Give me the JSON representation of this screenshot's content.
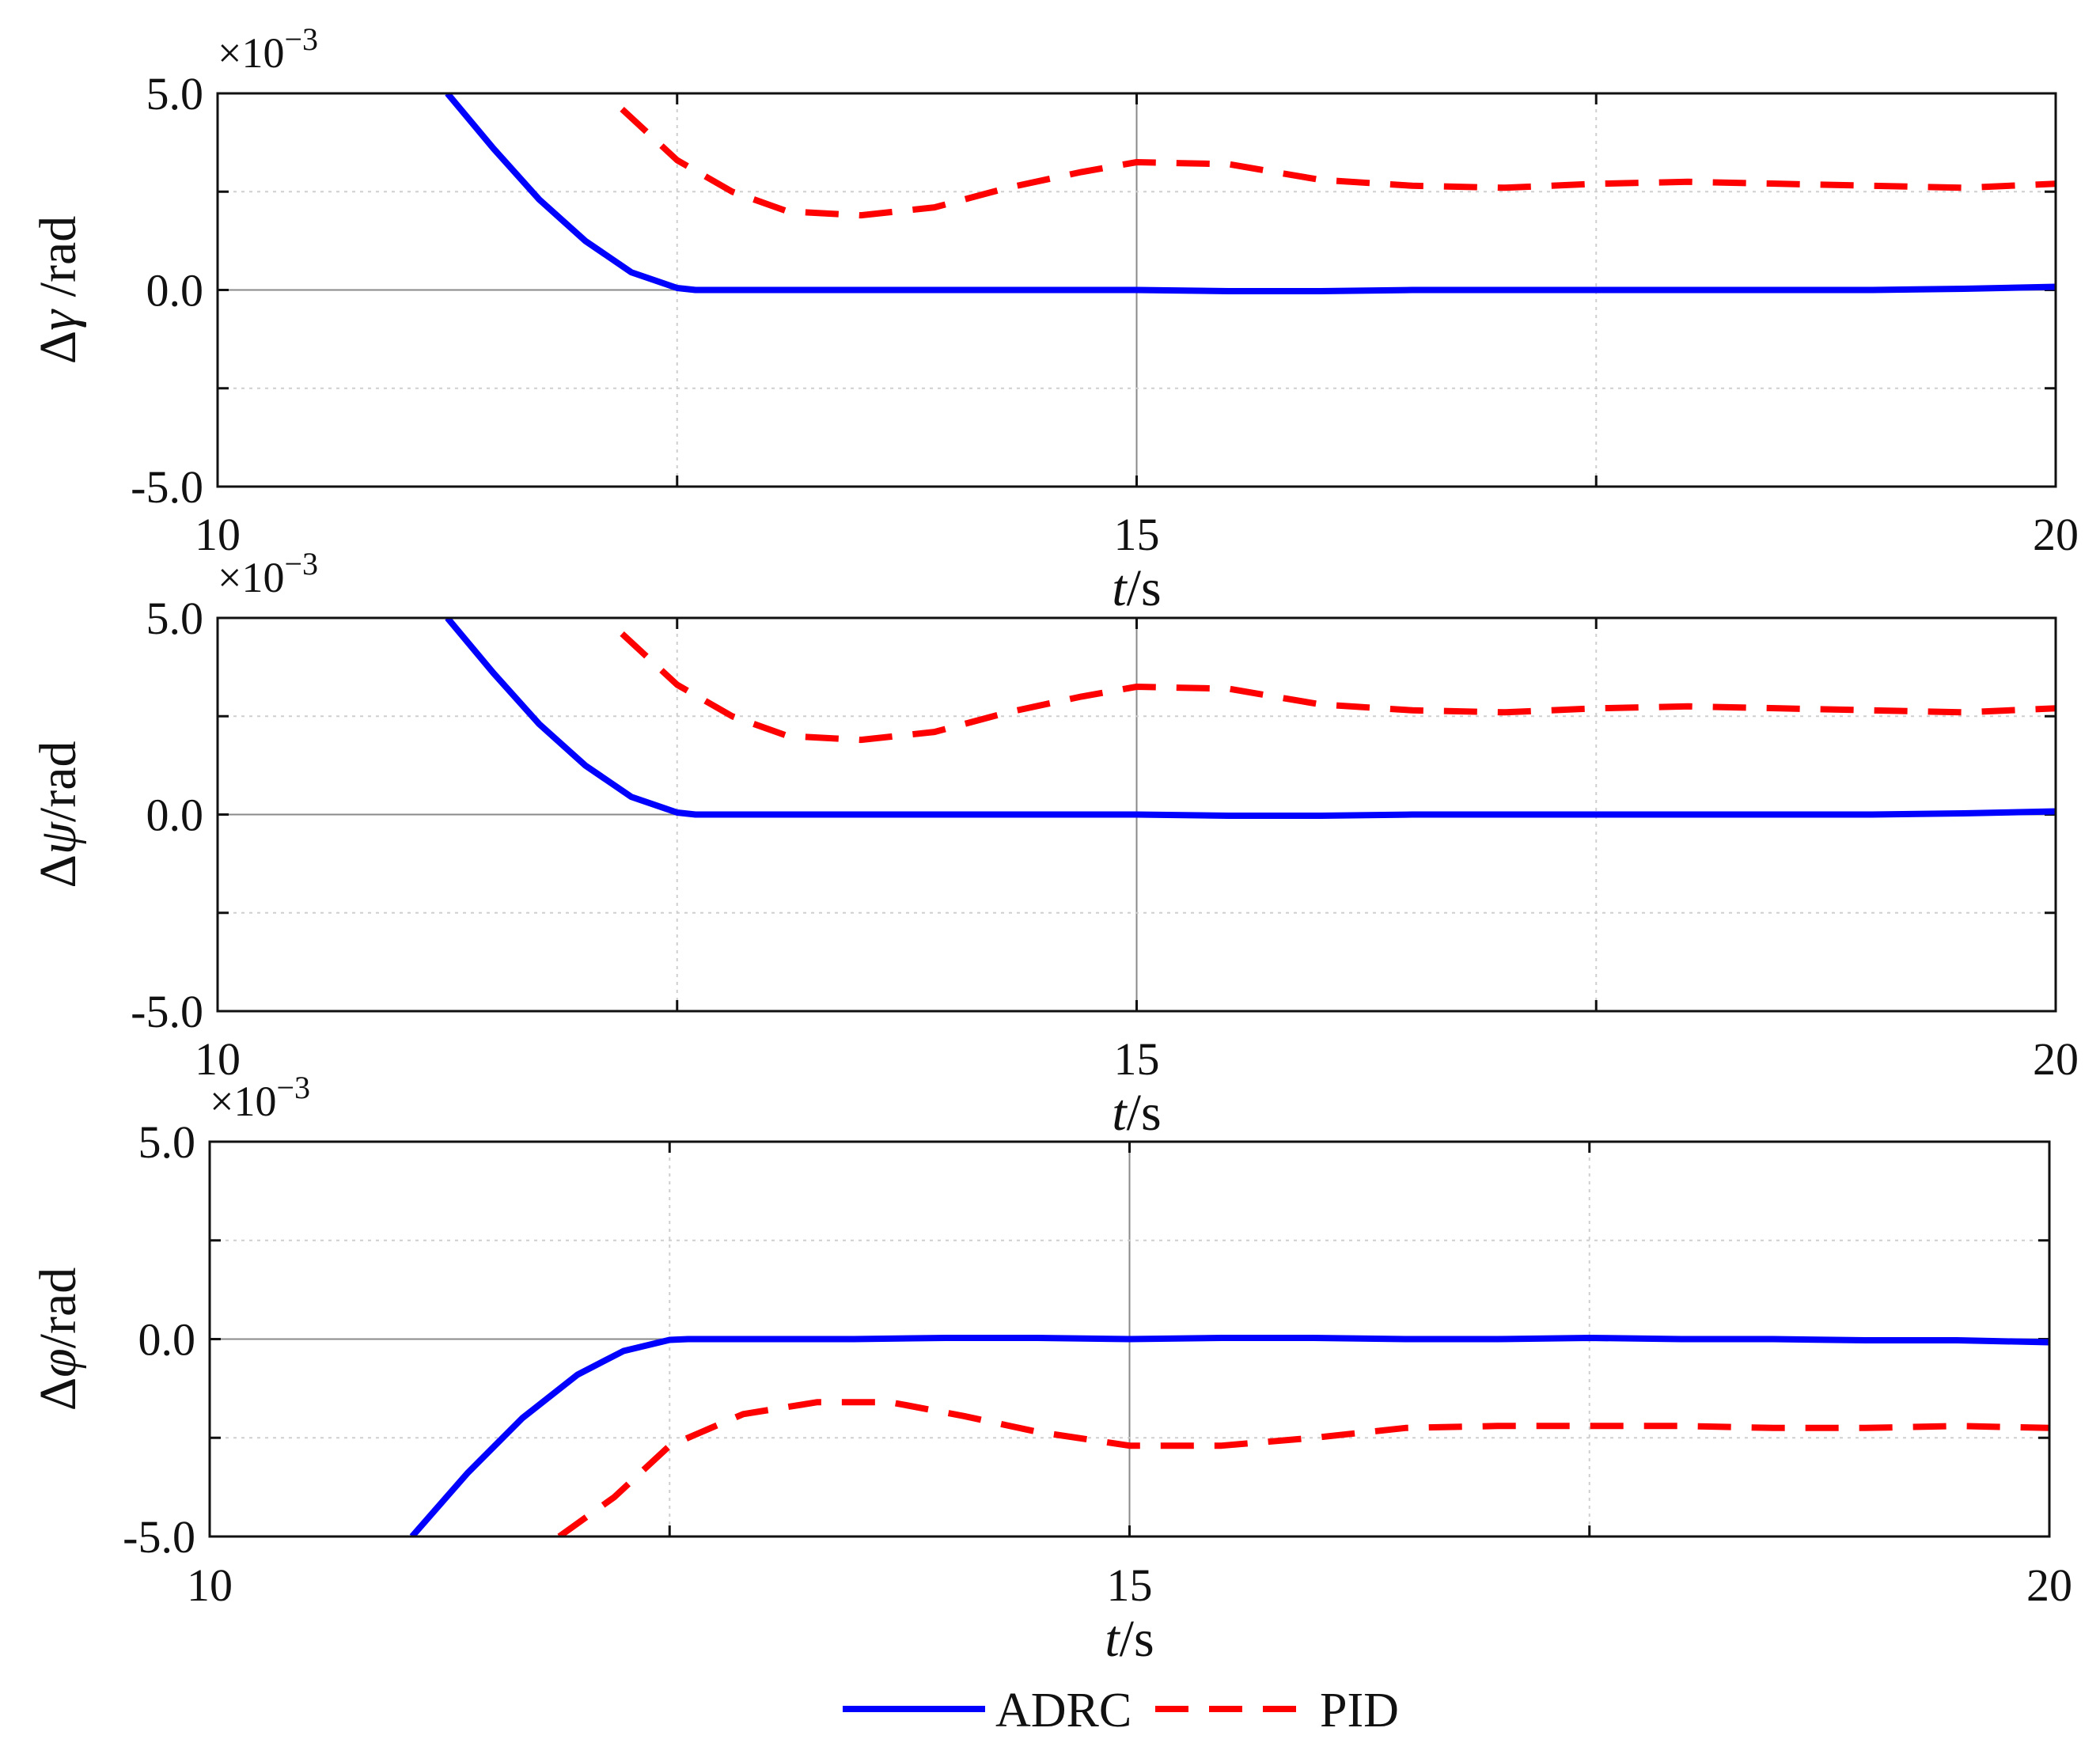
{
  "chart_data": [
    {
      "type": "line",
      "exponent_label": "×10",
      "exponent_power": "−3",
      "ylabel": {
        "prefix": "Δ",
        "symbol": "γ",
        "unit": "  /rad"
      },
      "xlabel": {
        "symbol": "t",
        "unit": "/s"
      },
      "xlim": [
        10,
        20
      ],
      "ylim": [
        -5.0,
        5.0
      ],
      "x_ticks": [
        10,
        12.5,
        15,
        17.5,
        20
      ],
      "x_tick_labels": [
        "10",
        "",
        "15",
        "",
        "20"
      ],
      "y_ticks": [
        -5.0,
        -2.5,
        0.0,
        2.5,
        5.0
      ],
      "y_tick_labels": [
        "-5.0",
        "",
        "0.0",
        "",
        "5.0"
      ],
      "series": [
        {
          "name": "ADRC",
          "style": "solid",
          "color": "#0000ff",
          "x": [
            11.25,
            11.5,
            11.75,
            12.0,
            12.25,
            12.5,
            12.6,
            13.0,
            13.5,
            14.0,
            14.5,
            15.0,
            15.5,
            16.0,
            16.5,
            17.0,
            17.5,
            18.0,
            18.5,
            19.0,
            19.5,
            20.0
          ],
          "y": [
            5.0,
            3.6,
            2.3,
            1.25,
            0.45,
            0.05,
            0.0,
            0.0,
            0.0,
            0.0,
            0.0,
            0.0,
            -0.03,
            -0.03,
            0.0,
            0.0,
            0.0,
            0.0,
            0.0,
            0.0,
            0.03,
            0.08
          ]
        },
        {
          "name": "PID",
          "style": "dashed",
          "color": "#ff0000",
          "x": [
            12.2,
            12.5,
            12.8,
            13.1,
            13.5,
            13.9,
            14.3,
            14.7,
            15.0,
            15.5,
            16.0,
            16.5,
            17.0,
            17.5,
            18.0,
            18.5,
            19.0,
            19.5,
            20.0
          ],
          "y": [
            4.6,
            3.3,
            2.5,
            2.0,
            1.9,
            2.1,
            2.6,
            3.0,
            3.25,
            3.2,
            2.8,
            2.65,
            2.6,
            2.7,
            2.75,
            2.7,
            2.65,
            2.6,
            2.7
          ]
        }
      ]
    },
    {
      "type": "line",
      "exponent_label": "×10",
      "exponent_power": "−3",
      "ylabel": {
        "prefix": "Δ",
        "symbol": "ψ",
        "unit": "/rad"
      },
      "xlabel": {
        "symbol": "t",
        "unit": "/s"
      },
      "xlim": [
        10,
        20
      ],
      "ylim": [
        -5.0,
        5.0
      ],
      "x_ticks": [
        10,
        12.5,
        15,
        17.5,
        20
      ],
      "x_tick_labels": [
        "10",
        "",
        "15",
        "",
        "20"
      ],
      "y_ticks": [
        -5.0,
        -2.5,
        0.0,
        2.5,
        5.0
      ],
      "y_tick_labels": [
        "-5.0",
        "",
        "0.0",
        "",
        "5.0"
      ],
      "series": [
        {
          "name": "ADRC",
          "style": "solid",
          "color": "#0000ff",
          "x": [
            11.25,
            11.5,
            11.75,
            12.0,
            12.25,
            12.5,
            12.6,
            13.0,
            13.5,
            14.0,
            14.5,
            15.0,
            15.5,
            16.0,
            16.5,
            17.0,
            17.5,
            18.0,
            18.5,
            19.0,
            19.5,
            20.0
          ],
          "y": [
            5.0,
            3.6,
            2.3,
            1.25,
            0.45,
            0.05,
            0.0,
            0.0,
            0.0,
            0.0,
            0.0,
            0.0,
            -0.03,
            -0.03,
            0.0,
            0.0,
            0.0,
            0.0,
            0.0,
            0.0,
            0.03,
            0.08
          ]
        },
        {
          "name": "PID",
          "style": "dashed",
          "color": "#ff0000",
          "x": [
            12.2,
            12.5,
            12.8,
            13.1,
            13.5,
            13.9,
            14.3,
            14.7,
            15.0,
            15.5,
            16.0,
            16.5,
            17.0,
            17.5,
            18.0,
            18.5,
            19.0,
            19.5,
            20.0
          ],
          "y": [
            4.6,
            3.3,
            2.5,
            2.0,
            1.9,
            2.1,
            2.6,
            3.0,
            3.25,
            3.2,
            2.8,
            2.65,
            2.6,
            2.7,
            2.75,
            2.7,
            2.65,
            2.6,
            2.7
          ]
        }
      ]
    },
    {
      "type": "line",
      "exponent_label": "×10",
      "exponent_power": "−3",
      "ylabel": {
        "prefix": "Δ",
        "symbol": "φ",
        "unit": "/rad"
      },
      "xlabel": {
        "symbol": "t",
        "unit": "/s"
      },
      "xlim": [
        10,
        20
      ],
      "ylim": [
        -5.0,
        5.0
      ],
      "x_ticks": [
        10,
        12.5,
        15,
        17.5,
        20
      ],
      "x_tick_labels": [
        "10",
        "",
        "15",
        "",
        "20"
      ],
      "y_ticks": [
        -5.0,
        -2.5,
        0.0,
        2.5,
        5.0
      ],
      "y_tick_labels": [
        "-5.0",
        "",
        "0.0",
        "",
        "5.0"
      ],
      "series": [
        {
          "name": "ADRC",
          "style": "solid",
          "color": "#0000ff",
          "x": [
            11.1,
            11.4,
            11.7,
            12.0,
            12.25,
            12.5,
            12.6,
            13.0,
            13.5,
            14.0,
            14.5,
            15.0,
            15.5,
            16.0,
            16.5,
            17.0,
            17.5,
            18.0,
            18.5,
            19.0,
            19.5,
            20.0
          ],
          "y": [
            -5.0,
            -3.4,
            -2.0,
            -0.9,
            -0.3,
            -0.02,
            0.0,
            0.0,
            0.0,
            0.03,
            0.03,
            0.0,
            0.03,
            0.03,
            0.0,
            0.0,
            0.03,
            0.0,
            0.0,
            -0.03,
            -0.03,
            -0.08
          ]
        },
        {
          "name": "PID",
          "style": "dashed",
          "color": "#ff0000",
          "x": [
            11.9,
            12.2,
            12.5,
            12.9,
            13.3,
            13.7,
            14.1,
            14.5,
            15.0,
            15.5,
            16.0,
            16.5,
            17.0,
            17.5,
            18.0,
            18.5,
            19.0,
            19.5,
            20.0
          ],
          "y": [
            -5.0,
            -4.0,
            -2.7,
            -1.9,
            -1.6,
            -1.6,
            -1.95,
            -2.35,
            -2.7,
            -2.7,
            -2.5,
            -2.25,
            -2.2,
            -2.2,
            -2.2,
            -2.25,
            -2.25,
            -2.2,
            -2.25
          ]
        }
      ]
    }
  ],
  "legend": {
    "placement": "bottom-center",
    "entries": [
      {
        "label": "ADRC",
        "style": "solid",
        "color": "#0000ff"
      },
      {
        "label": "PID",
        "style": "dashed",
        "color": "#ff0000"
      }
    ]
  }
}
